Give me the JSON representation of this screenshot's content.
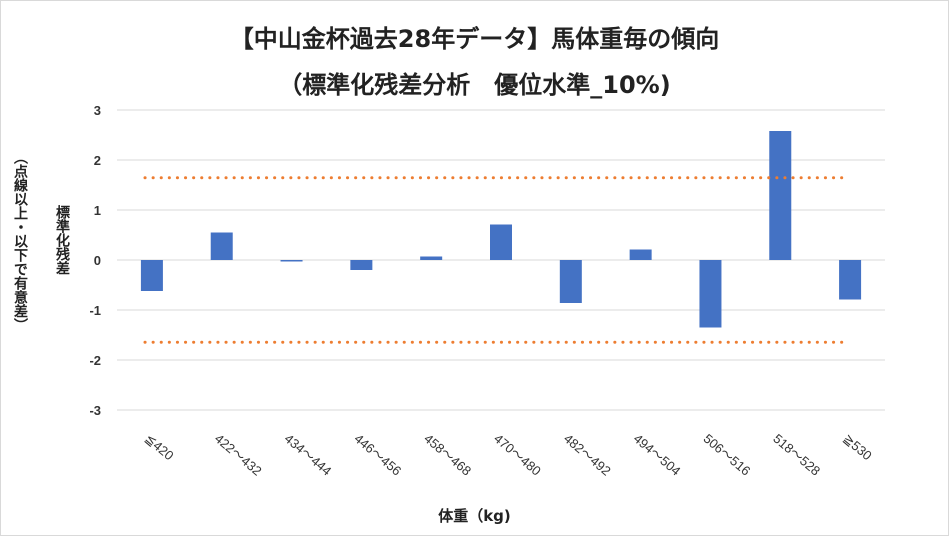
{
  "chart_data": {
    "type": "bar",
    "title": "【中山金杯過去28年データ】馬体重毎の傾向",
    "subtitle": "（標準化残差分析　優位水準_10%)",
    "xlabel": "体重（kg)",
    "ylabel": "標準化残差",
    "ylabel_note": "（点線以上・以下で有意差）",
    "categories": [
      "≦420",
      "422～432",
      "434～444",
      "446～456",
      "458～468",
      "470～480",
      "482～492",
      "494～504",
      "506～516",
      "518～528",
      "≧530"
    ],
    "series": [
      {
        "values": [
          -0.62,
          0.55,
          -0.03,
          -0.2,
          0.07,
          0.71,
          -0.86,
          0.21,
          -1.35,
          2.58,
          -0.79
        ]
      }
    ],
    "yticks": [
      "3",
      "2",
      "1",
      "0",
      "-1",
      "-2",
      "-3"
    ],
    "ylim": [
      -3,
      3
    ],
    "threshold": 1.645,
    "grid": true,
    "colors": {
      "bar": "#4472c4",
      "threshold": "#ed7d31",
      "grid": "#d9d9d9"
    }
  }
}
